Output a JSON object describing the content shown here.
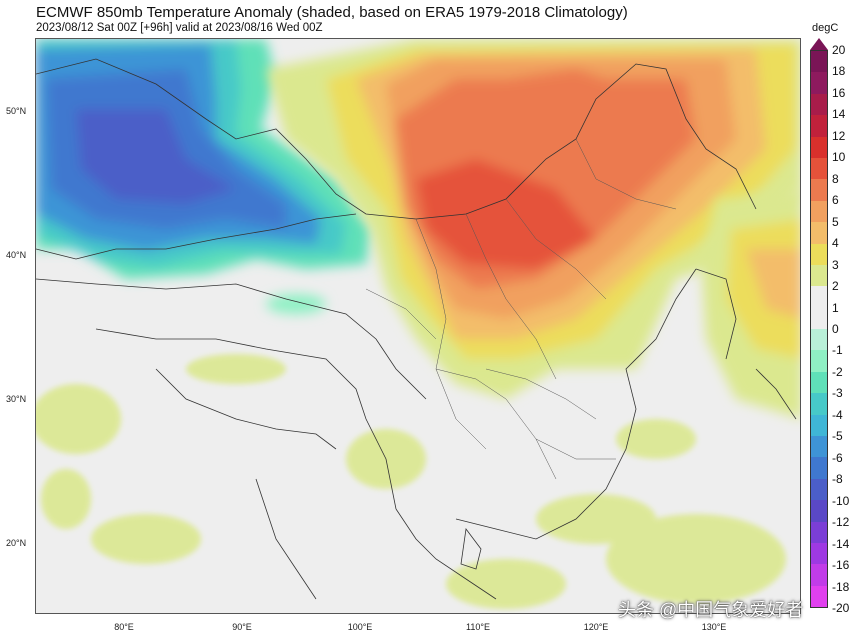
{
  "header": {
    "title": "ECMWF 850mb Temperature Anomaly (shaded, based on ERA5 1979-2018 Climatology)",
    "subtitle": "2023/08/12 Sat 00Z [+96h] valid at 2023/08/16 Wed 00Z"
  },
  "map": {
    "lat_labels": [
      "50°N",
      "40°N",
      "30°N",
      "20°N"
    ],
    "lon_labels": [
      "80°E",
      "90°E",
      "100°E",
      "110°E",
      "120°E",
      "130°E"
    ]
  },
  "colorbar": {
    "unit": "degC",
    "ticks": [
      "20",
      "18",
      "16",
      "14",
      "12",
      "10",
      "8",
      "6",
      "5",
      "4",
      "3",
      "2",
      "1",
      "0",
      "-1",
      "-2",
      "-3",
      "-4",
      "-5",
      "-6",
      "-8",
      "-10",
      "-12",
      "-14",
      "-16",
      "-18",
      "-20"
    ],
    "colors": [
      "#7a1556",
      "#8e1a5e",
      "#a81c4a",
      "#c1213b",
      "#d9302c",
      "#e5523a",
      "#ec7a4f",
      "#f1a05f",
      "#f3bd6a",
      "#ecdd5b",
      "#dbe88f",
      "#eeeeee",
      "#eeeeee",
      "#b9f0d8",
      "#8ff0c4",
      "#5fe0b8",
      "#47c9c8",
      "#3fb6d6",
      "#3e94d6",
      "#3f78cf",
      "#4b5ec8",
      "#5a48c6",
      "#7b3ed6",
      "#9e39e2",
      "#c13ce8",
      "#e040ee"
    ]
  },
  "watermark": "头条 @中国气象爱好者"
}
